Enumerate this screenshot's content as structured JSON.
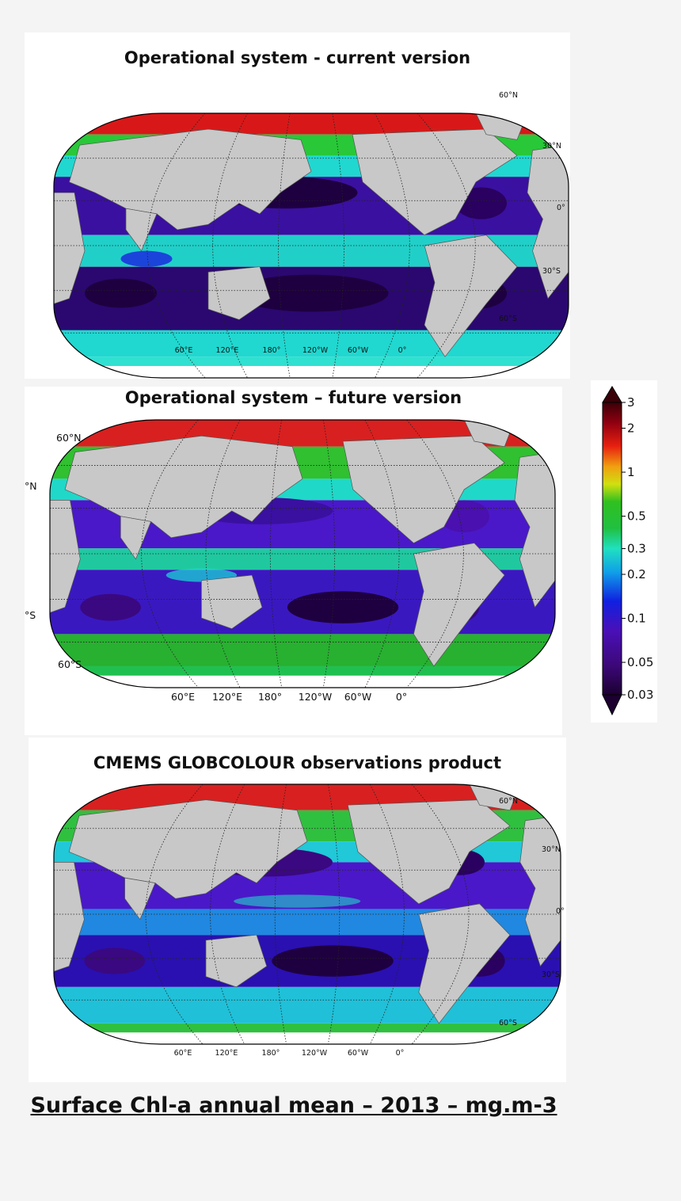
{
  "panels": [
    {
      "title": "Operational system - current version",
      "lat_labels": [
        "60°N",
        "30°N",
        "0°",
        "30°S",
        "60°S"
      ],
      "lon_labels": [
        "60°E",
        "120°E",
        "180°",
        "120°W",
        "60°W",
        "0°"
      ]
    },
    {
      "title": "Operational system – future version",
      "lat_labels": [
        "60°N",
        "°N",
        "°S",
        "60°S"
      ],
      "lon_labels": [
        "60°E",
        "120°E",
        "180°",
        "120°W",
        "60°W",
        "0°"
      ]
    },
    {
      "title": "CMEMS GLOBCOLOUR observations product",
      "lat_labels": [
        "60°N",
        "30°N",
        "0°",
        "30°S",
        "60°S"
      ],
      "lon_labels": [
        "60°E",
        "120°E",
        "180°",
        "120°W",
        "60°W",
        "0°"
      ]
    }
  ],
  "colorbar": {
    "ticks": [
      {
        "label": "3",
        "value": 3
      },
      {
        "label": "2",
        "value": 2
      },
      {
        "label": "1",
        "value": 1
      },
      {
        "label": "0.5",
        "value": 0.5
      },
      {
        "label": "0.3",
        "value": 0.3
      },
      {
        "label": "0.2",
        "value": 0.2
      },
      {
        "label": "0.1",
        "value": 0.1
      },
      {
        "label": "0.05",
        "value": 0.05
      },
      {
        "label": "0.03",
        "value": 0.03
      }
    ],
    "scale": "log",
    "range": [
      0.03,
      3
    ]
  },
  "footer": "Surface Chl-a annual mean – 2013 – mg.m-3",
  "colors": {
    "land": "#c8c8c8",
    "very_low": "#2a0038",
    "low": "#4a0a8a",
    "blue": "#1a2cdc",
    "cyan": "#23e0d0",
    "green": "#22b030",
    "yellow": "#e8e010",
    "red": "#d81010"
  }
}
